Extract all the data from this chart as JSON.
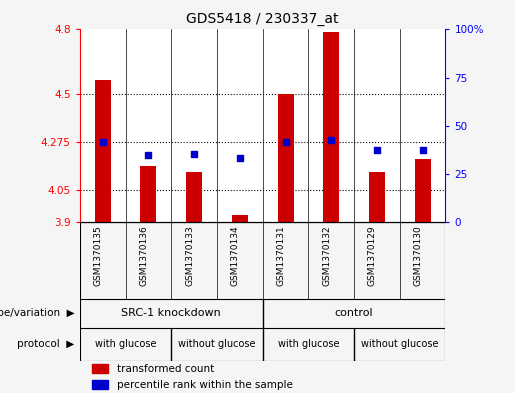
{
  "title": "GDS5418 / 230337_at",
  "samples": [
    "GSM1370135",
    "GSM1370136",
    "GSM1370133",
    "GSM1370134",
    "GSM1370131",
    "GSM1370132",
    "GSM1370129",
    "GSM1370130"
  ],
  "red_values": [
    4.565,
    4.16,
    4.135,
    3.935,
    4.5,
    4.79,
    4.135,
    4.195
  ],
  "blue_values": [
    4.275,
    4.215,
    4.22,
    4.2,
    4.275,
    4.285,
    4.235,
    4.235
  ],
  "ylim_left": [
    3.9,
    4.8
  ],
  "ylim_right": [
    0,
    100
  ],
  "yticks_left": [
    3.9,
    4.05,
    4.275,
    4.5,
    4.8
  ],
  "yticks_right": [
    0,
    25,
    50,
    75,
    100
  ],
  "ytick_labels_left": [
    "3.9",
    "4.05",
    "4.275",
    "4.5",
    "4.8"
  ],
  "ytick_labels_right": [
    "0",
    "25",
    "50",
    "75",
    "100%"
  ],
  "hlines": [
    4.5,
    4.275,
    4.05
  ],
  "bar_color": "#cc0000",
  "dot_color": "#0000cc",
  "bar_width": 0.35,
  "dot_size": 25,
  "genotype_labels": [
    "SRC-1 knockdown",
    "control"
  ],
  "genotype_color": "#88ee88",
  "protocol_labels": [
    "with glucose",
    "without glucose",
    "with glucose",
    "without glucose"
  ],
  "protocol_color": "#ee88ee",
  "legend_red_label": "transformed count",
  "legend_blue_label": "percentile rank within the sample",
  "fig_bg_color": "#f5f5f5",
  "plot_bg_color": "#ffffff",
  "gray_bg_color": "#cccccc"
}
